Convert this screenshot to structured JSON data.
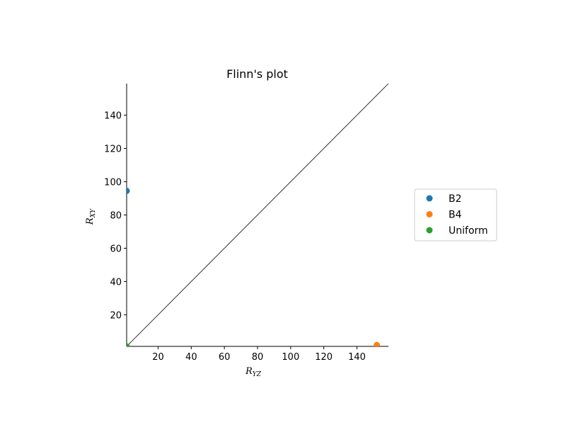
{
  "chart_data": {
    "type": "scatter",
    "title": "Flinn's plot",
    "xlabel": {
      "main": "R",
      "sub": "YZ"
    },
    "ylabel": {
      "main": "R",
      "sub": "XY"
    },
    "xlim": [
      1,
      159
    ],
    "ylim": [
      1,
      159
    ],
    "xticks": [
      20,
      40,
      60,
      80,
      100,
      120,
      140
    ],
    "yticks": [
      20,
      40,
      60,
      80,
      100,
      120,
      140
    ],
    "grid": false,
    "legend_position": "right",
    "reference_line": {
      "from": [
        1,
        1
      ],
      "to": [
        159,
        159
      ],
      "color": "#000000"
    },
    "series": [
      {
        "name": "B2",
        "color": "#1f77b4",
        "points": [
          {
            "x": 1,
            "y": 94.5
          }
        ]
      },
      {
        "name": "B4",
        "color": "#ff7f0e",
        "points": [
          {
            "x": 152,
            "y": 1.8
          }
        ]
      },
      {
        "name": "Uniform",
        "color": "#2ca02c",
        "points": [
          {
            "x": 1,
            "y": 1
          }
        ]
      }
    ]
  }
}
